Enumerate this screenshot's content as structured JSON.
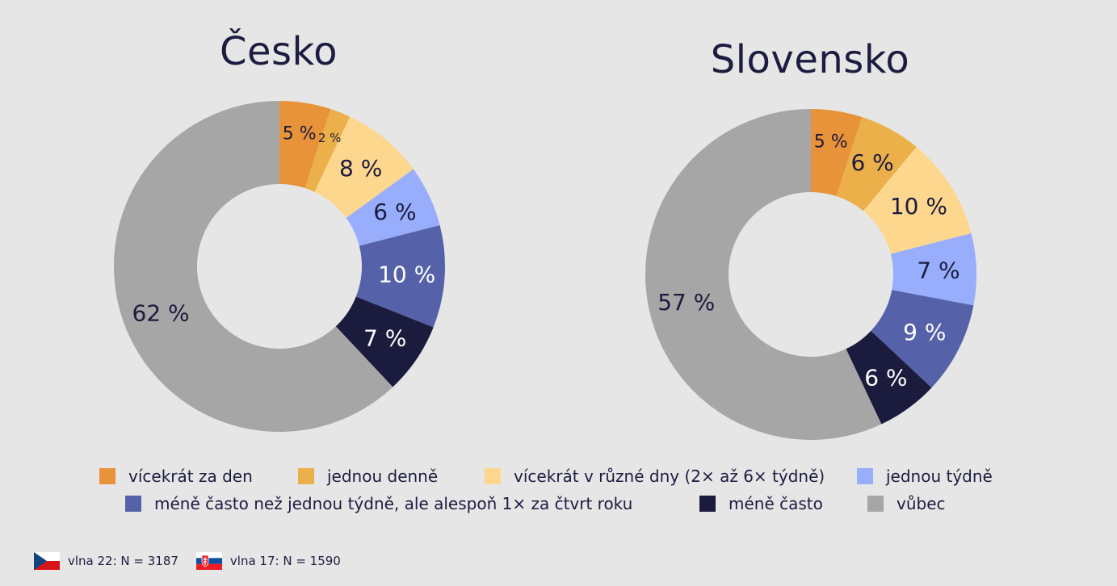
{
  "chart_data": [
    {
      "type": "pie",
      "title": "Česko",
      "categories": [
        "vícekrát za den",
        "jednou denně",
        "vícekrát v různé dny (2× až 6× týdně)",
        "jednou týdně",
        "méně často než jednou týdně, ale alespoň 1× za čtvrt roku",
        "méně často",
        "vůbec"
      ],
      "values": [
        5,
        2,
        8,
        6,
        10,
        7,
        62
      ],
      "labels": [
        "5 %",
        "2 %",
        "8 %",
        "6 %",
        "10 %",
        "7 %",
        "62 %"
      ]
    },
    {
      "type": "pie",
      "title": "Slovensko",
      "categories": [
        "vícekrát za den",
        "jednou denně",
        "vícekrát v různé dny (2× až 6× týdně)",
        "jednou týdně",
        "méně často než jednou týdně, ale alespoň 1× za čtvrt roku",
        "méně často",
        "vůbec"
      ],
      "values": [
        5,
        6,
        10,
        7,
        9,
        6,
        57
      ],
      "labels": [
        "5 %",
        "6 %",
        "10 %",
        "7 %",
        "9 %",
        "6 %",
        "57 %"
      ]
    }
  ],
  "colors": [
    "#e8923a",
    "#ecb04a",
    "#fdd78e",
    "#98aefc",
    "#5562aa",
    "#1b1b3d",
    "#a6a6a6"
  ],
  "label_colors": [
    "#1b1b3d",
    "#1b1b3d",
    "#1b1b3d",
    "#1b1b3d",
    "#ffffff",
    "#ffffff",
    "#1b1b3d"
  ],
  "legend": [
    {
      "label": "vícekrát za den"
    },
    {
      "label": "jednou denně"
    },
    {
      "label": "vícekrát v různé dny (2× až 6× týdně)"
    },
    {
      "label": "jednou týdně"
    },
    {
      "label": "méně často než jednou týdně, ale alespoň 1× za čtvrt roku"
    },
    {
      "label": "méně často"
    },
    {
      "label": "vůbec"
    }
  ],
  "footer": {
    "cz": {
      "flag": "czech-flag-icon",
      "text": "vlna 22: N = 3187"
    },
    "sk": {
      "flag": "slovak-flag-icon",
      "text": "vlna 17: N = 1590"
    }
  }
}
